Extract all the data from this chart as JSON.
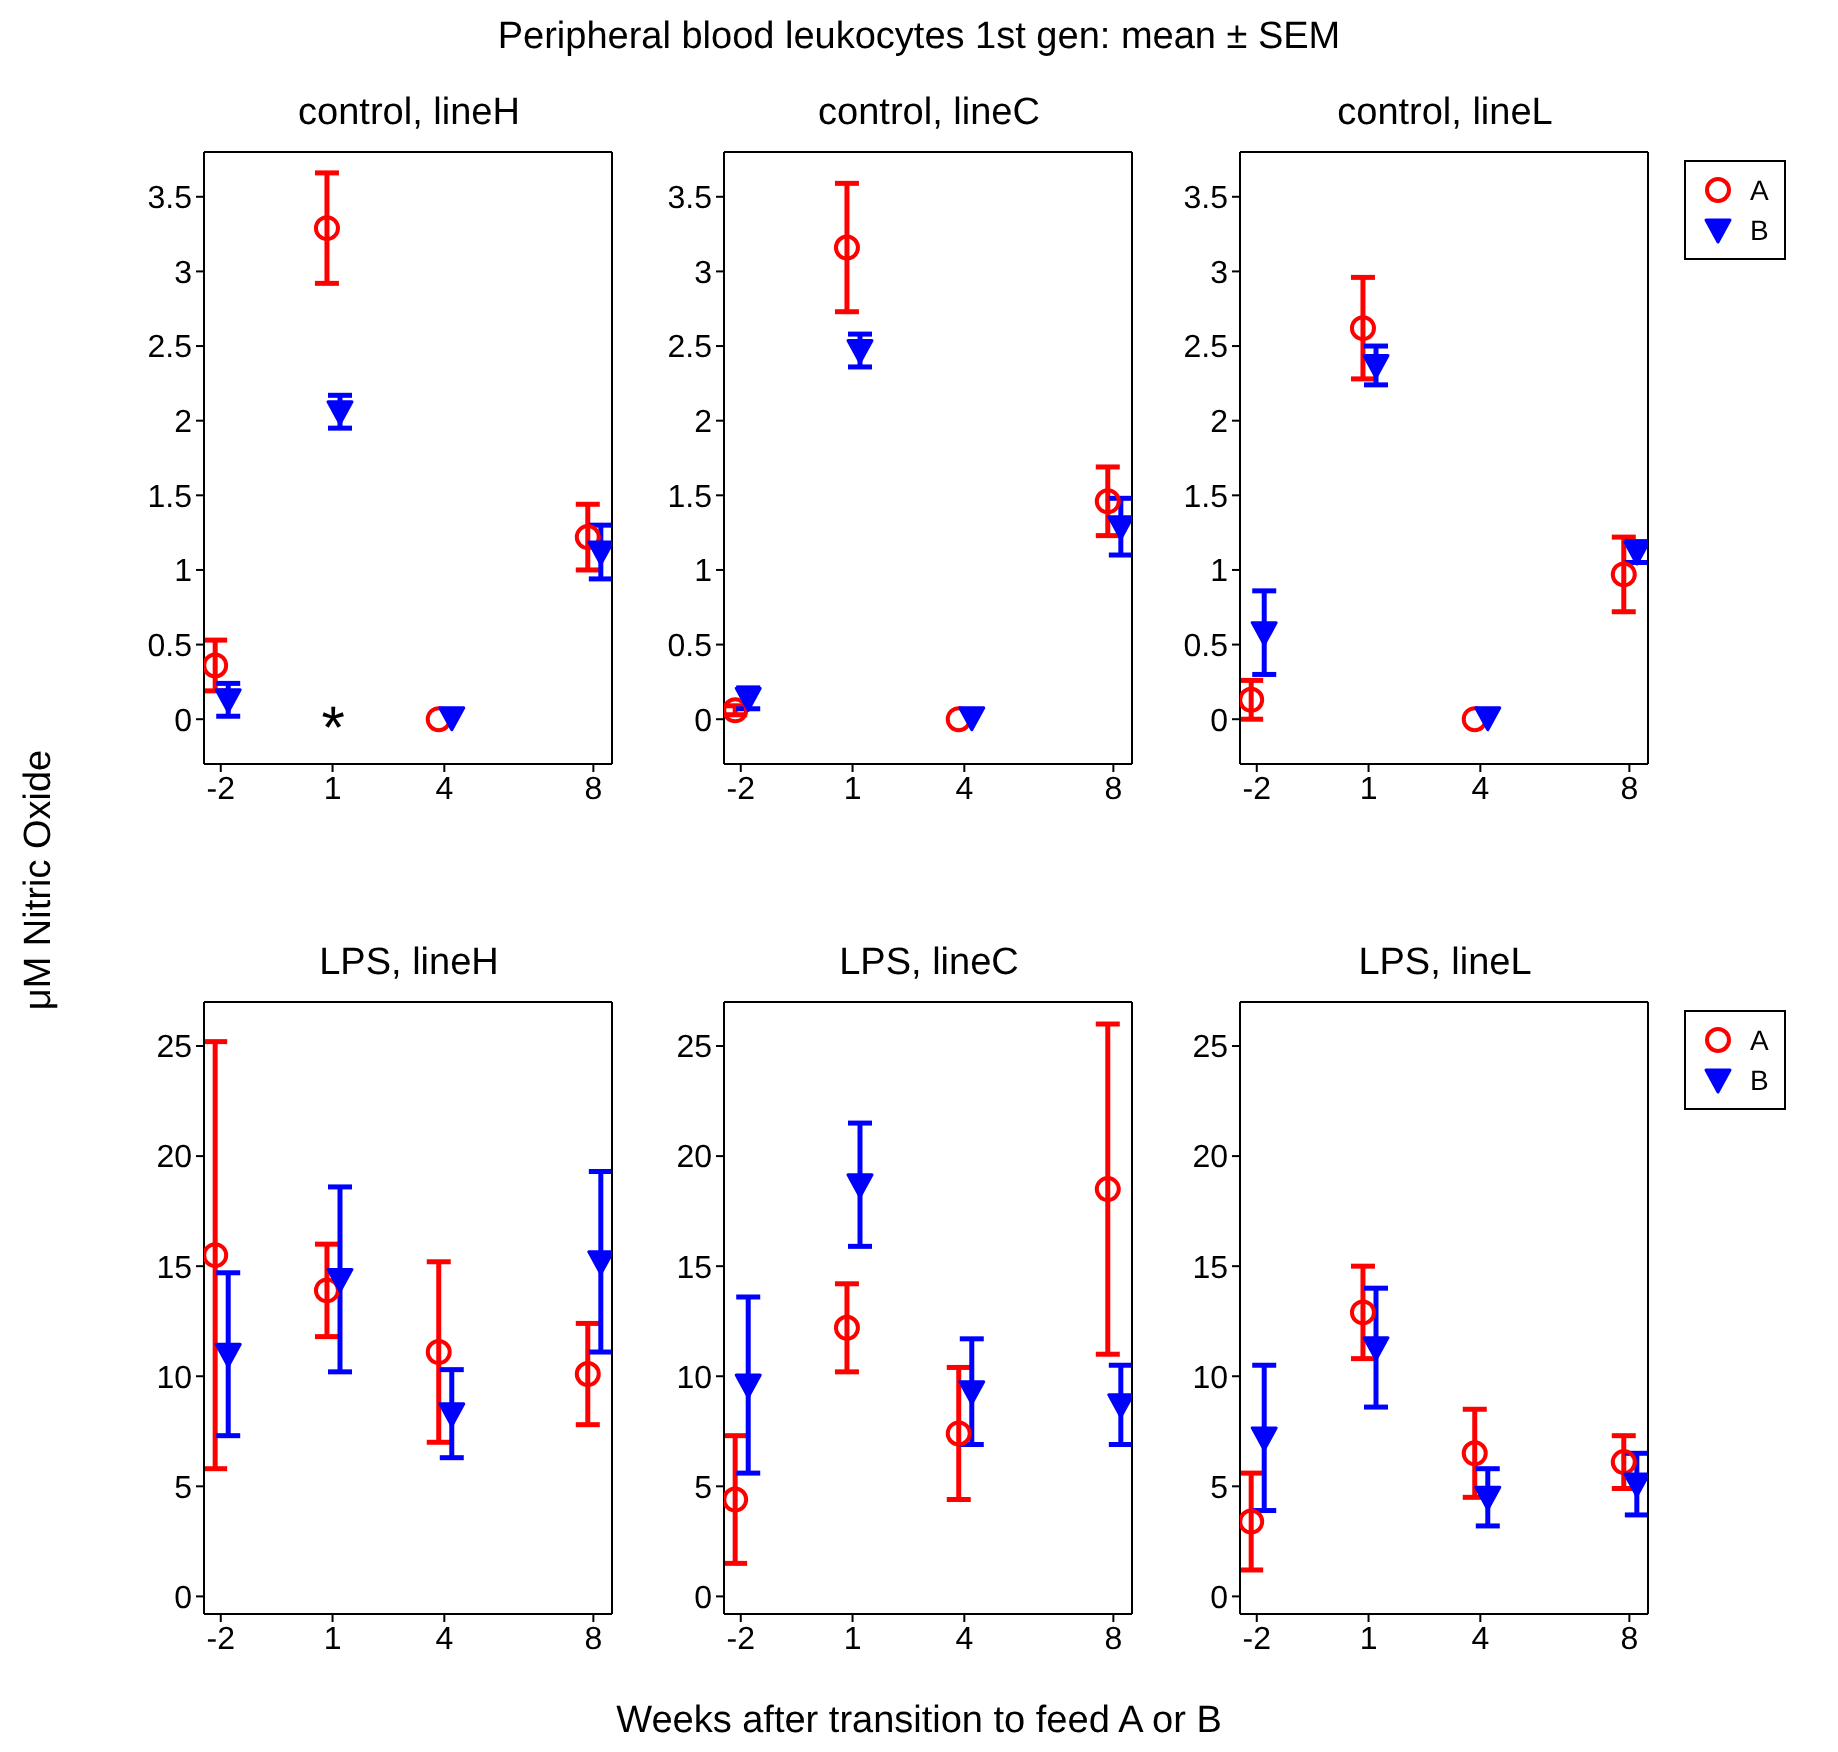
{
  "chart_data": [
    {
      "type": "scatter",
      "title": "control, lineH",
      "ylabel": "μM Nitric Oxide",
      "annotations": [
        "Peripheral blood leukocytes 1st gen: mean ± SEM",
        "*"
      ],
      "xlim": [
        -2.45,
        8.5
      ],
      "xticks": [
        -2,
        1,
        4,
        8
      ],
      "ylim": [
        -0.3,
        3.8
      ],
      "yticks": [
        0,
        0.5,
        1,
        1.5,
        2,
        2.5,
        3,
        3.5
      ],
      "grid": false,
      "series": [
        {
          "color": "#ff0000",
          "marker": "circle",
          "x": [
            -2.15,
            0.85,
            3.85,
            7.85
          ],
          "values": [
            0.36,
            3.29,
            0,
            1.22
          ],
          "errors": [
            0.17,
            0.37,
            null,
            0.22
          ]
        },
        {
          "color": "#0000ff",
          "marker": "triangle",
          "x": [
            -1.8,
            1.2,
            4.2,
            8.2
          ],
          "values": [
            0.13,
            2.06,
            0.01,
            1.12
          ],
          "errors": [
            0.11,
            0.11,
            null,
            0.18
          ]
        }
      ]
    },
    {
      "type": "scatter",
      "title": "control, lineC",
      "xlim": [
        -2.45,
        8.5
      ],
      "xticks": [
        -2,
        1,
        4,
        8
      ],
      "ylim": [
        -0.3,
        3.8
      ],
      "yticks": [
        0,
        0.5,
        1,
        1.5,
        2,
        2.5,
        3,
        3.5
      ],
      "grid": false,
      "series": [
        {
          "color": "#ff0000",
          "marker": "circle",
          "x": [
            -2.15,
            0.85,
            3.85,
            7.85
          ],
          "values": [
            0.06,
            3.16,
            0,
            1.46
          ],
          "errors": [
            0.03,
            0.43,
            null,
            0.23
          ]
        },
        {
          "color": "#0000ff",
          "marker": "triangle",
          "x": [
            -1.8,
            1.2,
            4.2,
            8.2
          ],
          "values": [
            0.14,
            2.47,
            0.01,
            1.29
          ],
          "errors": [
            0.07,
            0.11,
            null,
            0.19
          ]
        }
      ]
    },
    {
      "type": "scatter",
      "title": "control, lineL",
      "legend": "top right",
      "xlim": [
        -2.45,
        8.5
      ],
      "xticks": [
        -2,
        1,
        4,
        8
      ],
      "ylim": [
        -0.3,
        3.8
      ],
      "yticks": [
        0,
        0.5,
        1,
        1.5,
        2,
        2.5,
        3,
        3.5
      ],
      "grid": false,
      "series": [
        {
          "name": "A",
          "color": "#ff0000",
          "marker": "circle",
          "x": [
            -2.15,
            0.85,
            3.85,
            7.85
          ],
          "values": [
            0.13,
            2.62,
            0,
            0.97
          ],
          "errors": [
            0.13,
            0.34,
            null,
            0.25
          ]
        },
        {
          "name": "B",
          "color": "#0000ff",
          "marker": "triangle",
          "x": [
            -1.8,
            1.2,
            4.2,
            8.2
          ],
          "values": [
            0.58,
            2.37,
            0.01,
            1.12
          ],
          "errors": [
            0.28,
            0.13,
            null,
            0.07
          ]
        }
      ]
    },
    {
      "type": "scatter",
      "title": "LPS, lineH",
      "xlim": [
        -2.45,
        8.5
      ],
      "xticks": [
        -2,
        1,
        4,
        8
      ],
      "ylim": [
        -0.8,
        27
      ],
      "yticks": [
        0,
        5,
        10,
        15,
        20,
        25
      ],
      "grid": false,
      "series": [
        {
          "color": "#ff0000",
          "marker": "circle",
          "x": [
            -2.15,
            0.85,
            3.85,
            7.85
          ],
          "values": [
            15.5,
            13.9,
            11.1,
            10.1
          ],
          "errors": [
            9.7,
            2.1,
            4.1,
            2.3
          ]
        },
        {
          "color": "#0000ff",
          "marker": "triangle",
          "x": [
            -1.8,
            1.2,
            4.2,
            8.2
          ],
          "values": [
            11.0,
            14.4,
            8.3,
            15.2
          ],
          "errors": [
            3.7,
            4.2,
            2.0,
            4.1
          ]
        }
      ]
    },
    {
      "type": "scatter",
      "title": "LPS, lineC",
      "xlabel": "Weeks after transition to feed A or B",
      "xlim": [
        -2.45,
        8.5
      ],
      "xticks": [
        -2,
        1,
        4,
        8
      ],
      "ylim": [
        -0.8,
        27
      ],
      "yticks": [
        0,
        5,
        10,
        15,
        20,
        25
      ],
      "grid": false,
      "series": [
        {
          "color": "#ff0000",
          "marker": "circle",
          "x": [
            -2.15,
            0.85,
            3.85,
            7.85
          ],
          "values": [
            4.4,
            12.2,
            7.4,
            18.5
          ],
          "errors": [
            2.9,
            2.0,
            3.0,
            7.5
          ]
        },
        {
          "color": "#0000ff",
          "marker": "triangle",
          "x": [
            -1.8,
            1.2,
            4.2,
            8.2
          ],
          "values": [
            9.6,
            18.7,
            9.3,
            8.7
          ],
          "errors": [
            4.0,
            2.8,
            2.4,
            1.8
          ]
        }
      ]
    },
    {
      "type": "scatter",
      "title": "LPS, lineL",
      "legend": "top right",
      "xlim": [
        -2.45,
        8.5
      ],
      "xticks": [
        -2,
        1,
        4,
        8
      ],
      "ylim": [
        -0.8,
        27
      ],
      "yticks": [
        0,
        5,
        10,
        15,
        20,
        25
      ],
      "grid": false,
      "series": [
        {
          "name": "A",
          "color": "#ff0000",
          "marker": "circle",
          "x": [
            -2.15,
            0.85,
            3.85,
            7.85
          ],
          "values": [
            3.4,
            12.9,
            6.5,
            6.1
          ],
          "errors": [
            2.2,
            2.1,
            2.0,
            1.2
          ]
        },
        {
          "name": "B",
          "color": "#0000ff",
          "marker": "triangle",
          "x": [
            -1.8,
            1.2,
            4.2,
            8.2
          ],
          "values": [
            7.2,
            11.3,
            4.5,
            5.1
          ],
          "errors": [
            3.3,
            2.7,
            1.3,
            1.4
          ]
        }
      ]
    }
  ]
}
